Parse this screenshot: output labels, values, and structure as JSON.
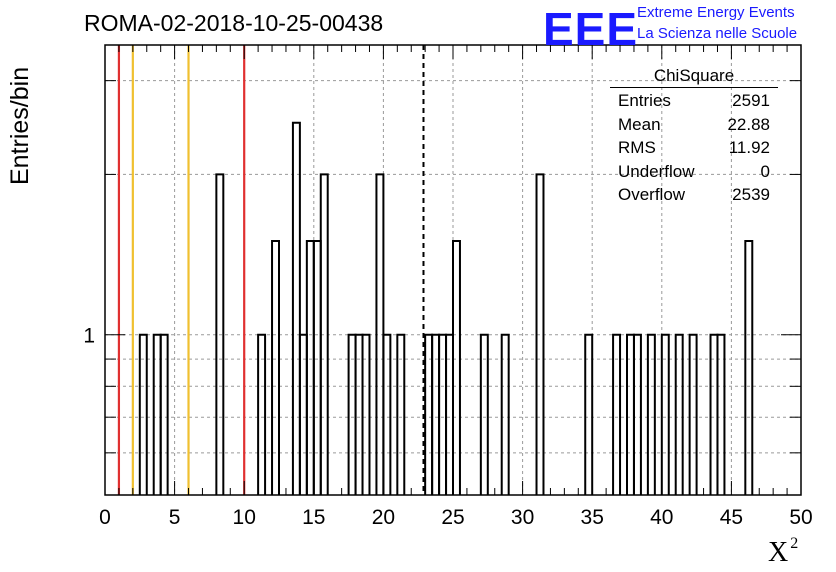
{
  "title": "ROMA-02-2018-10-25-00438",
  "logo": {
    "mark": "EEE",
    "line1": "Extreme Energy Events",
    "line2": "La Scienza nelle Scuole",
    "color": "#1a1aff"
  },
  "stats": {
    "title": "ChiSquare",
    "rows": [
      {
        "label": "Entries",
        "value": "2591"
      },
      {
        "label": "Mean",
        "value": "22.88"
      },
      {
        "label": "RMS",
        "value": "11.92"
      },
      {
        "label": "Underflow",
        "value": "0"
      },
      {
        "label": "Overflow",
        "value": "2539"
      }
    ]
  },
  "chart_data": {
    "type": "histogram",
    "title": "ROMA-02-2018-10-25-00438",
    "xlabel": "X",
    "xlabel_superscript": "2",
    "ylabel": "Entries/bin",
    "xlim": [
      0,
      50
    ],
    "ylim": [
      0.5,
      3.5
    ],
    "yscale": "log",
    "grid": true,
    "x_ticks": [
      0,
      5,
      10,
      15,
      20,
      25,
      30,
      35,
      40,
      45,
      50
    ],
    "y_tick_labels": [
      {
        "value": 1,
        "label": "1"
      }
    ],
    "bin_width": 0.5,
    "bins": [
      {
        "x": 2.5,
        "y": 1
      },
      {
        "x": 3.5,
        "y": 1
      },
      {
        "x": 4.0,
        "y": 1
      },
      {
        "x": 8.0,
        "y": 2
      },
      {
        "x": 11.0,
        "y": 1
      },
      {
        "x": 12.0,
        "y": 1.5
      },
      {
        "x": 13.5,
        "y": 2.5
      },
      {
        "x": 14.0,
        "y": 1
      },
      {
        "x": 14.5,
        "y": 1.5
      },
      {
        "x": 15.0,
        "y": 1.5
      },
      {
        "x": 15.5,
        "y": 2
      },
      {
        "x": 17.5,
        "y": 1
      },
      {
        "x": 18.0,
        "y": 1
      },
      {
        "x": 18.5,
        "y": 1
      },
      {
        "x": 19.5,
        "y": 2
      },
      {
        "x": 20.0,
        "y": 1
      },
      {
        "x": 21.0,
        "y": 1
      },
      {
        "x": 23.0,
        "y": 1
      },
      {
        "x": 23.5,
        "y": 1
      },
      {
        "x": 24.0,
        "y": 1
      },
      {
        "x": 24.5,
        "y": 1
      },
      {
        "x": 25.0,
        "y": 1.5
      },
      {
        "x": 27.0,
        "y": 1
      },
      {
        "x": 28.5,
        "y": 1
      },
      {
        "x": 31.0,
        "y": 2
      },
      {
        "x": 34.5,
        "y": 1
      },
      {
        "x": 36.5,
        "y": 1
      },
      {
        "x": 37.5,
        "y": 1
      },
      {
        "x": 38.0,
        "y": 1
      },
      {
        "x": 39.0,
        "y": 1
      },
      {
        "x": 40.0,
        "y": 1
      },
      {
        "x": 41.0,
        "y": 1
      },
      {
        "x": 42.0,
        "y": 1
      },
      {
        "x": 43.5,
        "y": 1
      },
      {
        "x": 44.0,
        "y": 1
      },
      {
        "x": 46.0,
        "y": 1.5
      }
    ],
    "reference_lines": [
      {
        "x": 1.0,
        "color": "#e03030"
      },
      {
        "x": 2.0,
        "color": "#f0c030"
      },
      {
        "x": 6.0,
        "color": "#f0c030"
      },
      {
        "x": 10.0,
        "color": "#e03030"
      },
      {
        "x": 22.88,
        "color": "#000000",
        "dashed": true
      }
    ]
  }
}
